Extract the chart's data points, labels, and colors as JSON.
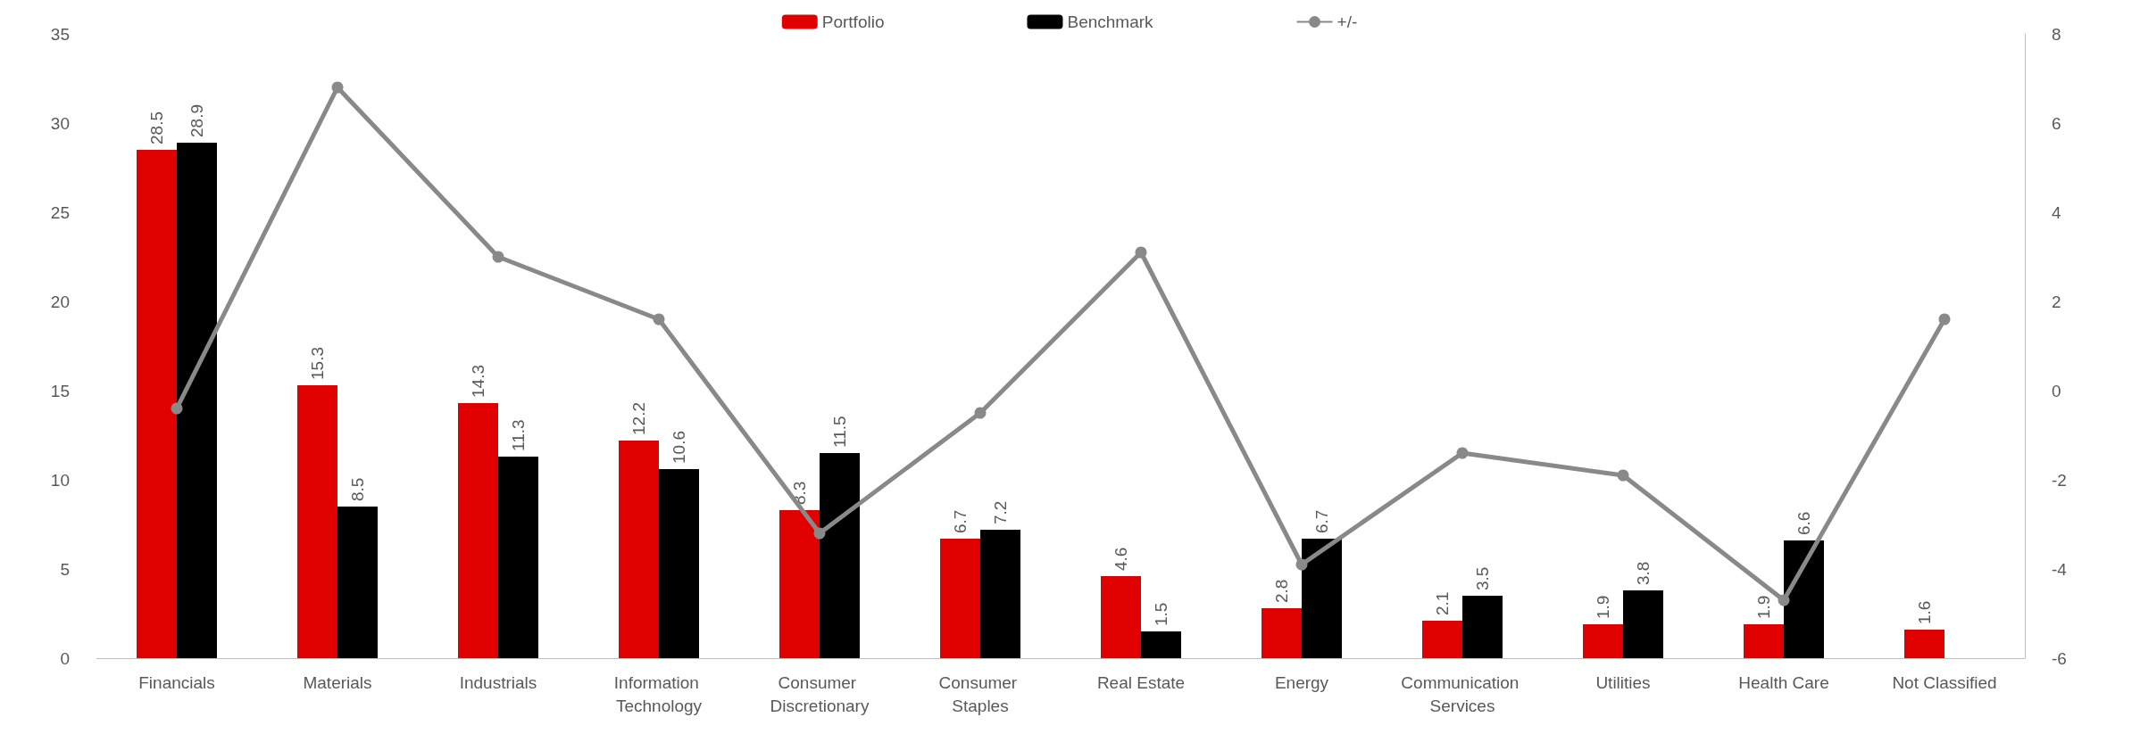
{
  "chart_data": {
    "type": "bar",
    "categories": [
      "Financials",
      "Materials",
      "Industrials",
      "Information Technology",
      "Consumer Discretionary",
      "Consumer Staples",
      "Real Estate",
      "Energy",
      "Communication Services",
      "Utilities",
      "Health Care",
      "Not Classified"
    ],
    "series": [
      {
        "name": "Portfolio",
        "color": "#e00000",
        "values": [
          28.5,
          15.3,
          14.3,
          12.2,
          8.3,
          6.7,
          4.6,
          2.8,
          2.1,
          1.9,
          1.9,
          1.6
        ],
        "value_labels": [
          "28.5",
          "15.3",
          "14.3",
          "12.2",
          "8.3",
          "6.7",
          "4.6",
          "2.8",
          "2.1",
          "1.9",
          "1.9",
          "1.6"
        ]
      },
      {
        "name": "Benchmark",
        "color": "#000000",
        "values": [
          28.9,
          8.5,
          11.3,
          10.6,
          11.5,
          7.2,
          1.5,
          6.7,
          3.5,
          3.8,
          6.6,
          null
        ],
        "value_labels": [
          "28.9",
          "8.5",
          "11.3",
          "10.6",
          "11.5",
          "7.2",
          "1.5",
          "6.7",
          "3.5",
          "3.8",
          "6.6",
          null
        ]
      },
      {
        "name": "+/-",
        "type": "line",
        "axis": "y2",
        "color": "#898989",
        "marker": "circle",
        "values": [
          -0.4,
          6.8,
          3.0,
          1.6,
          -3.2,
          -0.5,
          3.1,
          -3.9,
          -1.4,
          -1.9,
          -4.7,
          1.6
        ]
      }
    ],
    "ylim": [
      0,
      35
    ],
    "yticks": [
      0,
      5,
      10,
      15,
      20,
      25,
      30,
      35
    ],
    "y2lim": [
      -6,
      8
    ],
    "y2ticks": [
      -6,
      -4,
      -2,
      0,
      2,
      4,
      6,
      8
    ],
    "legend": "top",
    "grid": false
  }
}
